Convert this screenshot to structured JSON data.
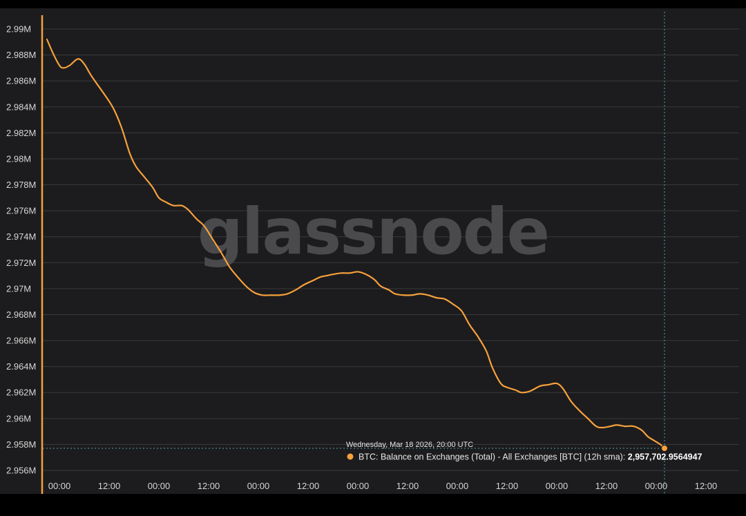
{
  "chart_data": {
    "type": "line",
    "title": "",
    "xlabel": "",
    "ylabel": "",
    "ylim": [
      2956000,
      2990000
    ],
    "y_ticks": [
      {
        "value": 2990000,
        "label": "2.99M"
      },
      {
        "value": 2988000,
        "label": "2.988M"
      },
      {
        "value": 2986000,
        "label": "2.986M"
      },
      {
        "value": 2984000,
        "label": "2.984M"
      },
      {
        "value": 2982000,
        "label": "2.982M"
      },
      {
        "value": 2980000,
        "label": "2.98M"
      },
      {
        "value": 2978000,
        "label": "2.978M"
      },
      {
        "value": 2976000,
        "label": "2.976M"
      },
      {
        "value": 2974000,
        "label": "2.974M"
      },
      {
        "value": 2972000,
        "label": "2.972M"
      },
      {
        "value": 2970000,
        "label": "2.97M"
      },
      {
        "value": 2968000,
        "label": "2.968M"
      },
      {
        "value": 2966000,
        "label": "2.966M"
      },
      {
        "value": 2964000,
        "label": "2.964M"
      },
      {
        "value": 2962000,
        "label": "2.962M"
      },
      {
        "value": 2960000,
        "label": "2.96M"
      },
      {
        "value": 2958000,
        "label": "2.958M"
      },
      {
        "value": 2956000,
        "label": "2.956M"
      }
    ],
    "x_ticks": [
      {
        "hour": 0,
        "label": "00:00"
      },
      {
        "hour": 12,
        "label": "12:00"
      },
      {
        "hour": 24,
        "label": "00:00"
      },
      {
        "hour": 36,
        "label": "12:00"
      },
      {
        "hour": 48,
        "label": "00:00"
      },
      {
        "hour": 60,
        "label": "12:00"
      },
      {
        "hour": 72,
        "label": "00:00"
      },
      {
        "hour": 84,
        "label": "12:00"
      },
      {
        "hour": 96,
        "label": "00:00"
      },
      {
        "hour": 108,
        "label": "12:00"
      },
      {
        "hour": 120,
        "label": "00:00"
      },
      {
        "hour": 132,
        "label": "12:00"
      },
      {
        "hour": 144,
        "label": "00:00"
      },
      {
        "hour": 156,
        "label": "12:00"
      }
    ],
    "xlim_hours": [
      -4,
      164
    ],
    "grid": true,
    "series": [
      {
        "name": "BTC: Balance on Exchanges (Total) - All Exchanges [BTC] (12h sma)",
        "color": "#f7a13c",
        "points": [
          [
            -3,
            2989200
          ],
          [
            -1.5,
            2988100
          ],
          [
            0,
            2987200
          ],
          [
            1,
            2987000
          ],
          [
            2.5,
            2987200
          ],
          [
            4.5,
            2987700
          ],
          [
            6,
            2987300
          ],
          [
            7.5,
            2986500
          ],
          [
            9,
            2985800
          ],
          [
            11,
            2984900
          ],
          [
            13,
            2983900
          ],
          [
            15,
            2982400
          ],
          [
            17,
            2980400
          ],
          [
            18.5,
            2979400
          ],
          [
            20.5,
            2978600
          ],
          [
            22.5,
            2977800
          ],
          [
            24,
            2977000
          ],
          [
            25.5,
            2976700
          ],
          [
            27.5,
            2976400
          ],
          [
            29.5,
            2976400
          ],
          [
            31,
            2976100
          ],
          [
            33,
            2975400
          ],
          [
            35,
            2974800
          ],
          [
            37,
            2973800
          ],
          [
            39,
            2972800
          ],
          [
            41,
            2971700
          ],
          [
            43,
            2970900
          ],
          [
            45,
            2970200
          ],
          [
            47,
            2969700
          ],
          [
            49,
            2969500
          ],
          [
            51,
            2969500
          ],
          [
            53,
            2969500
          ],
          [
            55,
            2969600
          ],
          [
            57,
            2969900
          ],
          [
            59,
            2970300
          ],
          [
            61,
            2970600
          ],
          [
            63,
            2970900
          ],
          [
            64.5,
            2971000
          ],
          [
            66,
            2971100
          ],
          [
            68,
            2971200
          ],
          [
            70,
            2971200
          ],
          [
            72,
            2971300
          ],
          [
            74,
            2971100
          ],
          [
            76,
            2970700
          ],
          [
            77.5,
            2970200
          ],
          [
            79.5,
            2969900
          ],
          [
            81,
            2969600
          ],
          [
            83,
            2969500
          ],
          [
            85,
            2969500
          ],
          [
            87,
            2969600
          ],
          [
            89,
            2969500
          ],
          [
            91,
            2969300
          ],
          [
            93,
            2969200
          ],
          [
            95,
            2968800
          ],
          [
            97,
            2968300
          ],
          [
            99,
            2967200
          ],
          [
            101,
            2966300
          ],
          [
            103,
            2965200
          ],
          [
            104.5,
            2963900
          ],
          [
            106.5,
            2962700
          ],
          [
            108,
            2962400
          ],
          [
            110,
            2962200
          ],
          [
            111.5,
            2962000
          ],
          [
            113.5,
            2962100
          ],
          [
            116,
            2962500
          ],
          [
            118,
            2962600
          ],
          [
            120,
            2962700
          ],
          [
            121.5,
            2962300
          ],
          [
            123.5,
            2961300
          ],
          [
            125.5,
            2960600
          ],
          [
            127.5,
            2960000
          ],
          [
            129.5,
            2959400
          ],
          [
            131,
            2959300
          ],
          [
            133,
            2959400
          ],
          [
            134.5,
            2959500
          ],
          [
            136.5,
            2959400
          ],
          [
            138.5,
            2959400
          ],
          [
            140.5,
            2959100
          ],
          [
            142,
            2958600
          ],
          [
            143.5,
            2958300
          ],
          [
            145,
            2958000
          ],
          [
            146,
            2957703
          ]
        ]
      }
    ],
    "watermark": "glassnode",
    "crosshair_hour": 146,
    "tooltip": {
      "date": "Wednesday, Mar 18 2026, 20:00 UTC",
      "series_label": "BTC: Balance on Exchanges (Total) - All Exchanges [BTC] (12h sma):",
      "value": "2,957,702.9564947",
      "value_raw": 2957702.9564947
    },
    "colors": {
      "background": "#1c1c1e",
      "grid": "#3a3a3c",
      "line": "#f7a13c",
      "axis_accent": "#f7a13c",
      "text": "#d6d6d6"
    }
  }
}
